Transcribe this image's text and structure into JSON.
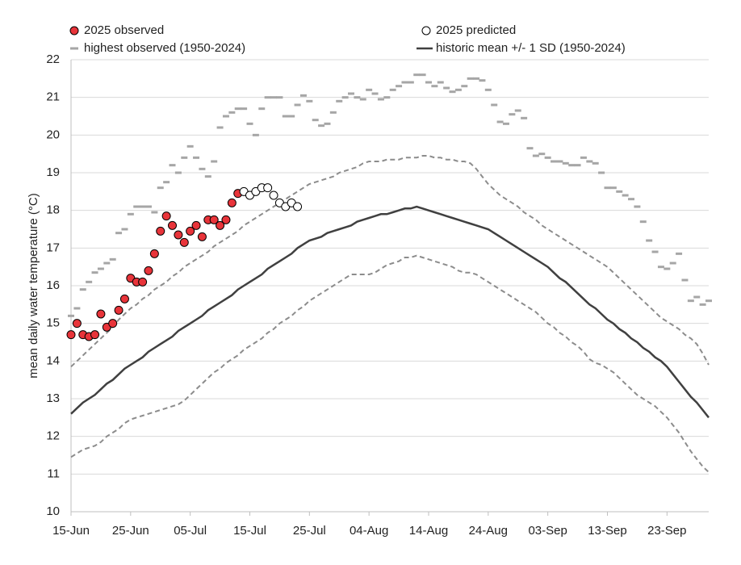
{
  "chart_data": {
    "type": "line",
    "ylabel": "mean daily water temperature (°C)",
    "ylim": [
      10,
      22
    ],
    "yticks": [
      10,
      11,
      12,
      13,
      14,
      15,
      16,
      17,
      18,
      19,
      20,
      21,
      22
    ],
    "grid": true,
    "categories": [
      "15-Jun",
      null,
      null,
      null,
      null,
      null,
      null,
      null,
      null,
      null,
      "25-Jun",
      null,
      null,
      null,
      null,
      null,
      null,
      null,
      null,
      null,
      "05-Jul",
      null,
      null,
      null,
      null,
      null,
      null,
      null,
      null,
      null,
      "15-Jul",
      null,
      null,
      null,
      null,
      null,
      null,
      null,
      null,
      null,
      "25-Jul",
      null,
      null,
      null,
      null,
      null,
      null,
      null,
      null,
      null,
      "04-Aug",
      null,
      null,
      null,
      null,
      null,
      null,
      null,
      null,
      null,
      "14-Aug",
      null,
      null,
      null,
      null,
      null,
      null,
      null,
      null,
      null,
      "24-Aug",
      null,
      null,
      null,
      null,
      null,
      null,
      null,
      null,
      null,
      "03-Sep",
      null,
      null,
      null,
      null,
      null,
      null,
      null,
      null,
      null,
      "13-Sep",
      null,
      null,
      null,
      null,
      null,
      null,
      null,
      null,
      null,
      "23-Sep",
      null,
      null,
      null,
      null,
      null,
      null,
      null
    ],
    "series": [
      {
        "name": "highest observed (1950-2024)",
        "color": "#a6a6a6",
        "style": "dash",
        "values": [
          15.2,
          15.4,
          15.9,
          16.1,
          16.35,
          16.45,
          16.6,
          16.7,
          17.4,
          17.5,
          17.9,
          18.1,
          18.1,
          18.1,
          17.95,
          18.6,
          18.75,
          19.2,
          19.0,
          19.4,
          19.7,
          19.4,
          19.1,
          18.9,
          19.3,
          20.2,
          20.5,
          20.6,
          20.7,
          20.7,
          20.3,
          20.0,
          20.7,
          21.0,
          21.0,
          21.0,
          20.5,
          20.5,
          20.8,
          21.05,
          20.9,
          20.4,
          20.25,
          20.3,
          20.6,
          20.9,
          21.0,
          21.1,
          21.0,
          20.95,
          21.2,
          21.1,
          20.95,
          21.0,
          21.2,
          21.3,
          21.4,
          21.4,
          21.6,
          21.6,
          21.4,
          21.3,
          21.4,
          21.25,
          21.15,
          21.2,
          21.3,
          21.5,
          21.5,
          21.45,
          21.2,
          20.8,
          20.35,
          20.3,
          20.55,
          20.65,
          20.45,
          19.65,
          19.45,
          19.5,
          19.4,
          19.3,
          19.3,
          19.25,
          19.2,
          19.2,
          19.4,
          19.3,
          19.25,
          19.0,
          18.6,
          18.6,
          18.5,
          18.4,
          18.3,
          18.1,
          17.7,
          17.2,
          16.9,
          16.5,
          16.45,
          16.6,
          16.85,
          16.15,
          15.6,
          15.7,
          15.5,
          15.6
        ]
      },
      {
        "color": "#8c8c8c",
        "style": "dashed-line",
        "values": [
          13.85,
          14.0,
          14.15,
          14.3,
          14.45,
          14.6,
          14.75,
          14.9,
          15.1,
          15.25,
          15.4,
          15.5,
          15.65,
          15.75,
          15.9,
          16.0,
          16.1,
          16.25,
          16.35,
          16.5,
          16.6,
          16.7,
          16.8,
          16.9,
          17.05,
          17.15,
          17.25,
          17.35,
          17.45,
          17.6,
          17.7,
          17.8,
          17.9,
          18.0,
          18.1,
          18.2,
          18.3,
          18.4,
          18.5,
          18.6,
          18.7,
          18.75,
          18.8,
          18.85,
          18.9,
          19.0,
          19.05,
          19.1,
          19.15,
          19.25,
          19.3,
          19.3,
          19.3,
          19.35,
          19.35,
          19.35,
          19.4,
          19.4,
          19.4,
          19.45,
          19.45,
          19.4,
          19.4,
          19.35,
          19.35,
          19.3,
          19.3,
          19.25,
          19.1,
          18.9,
          18.7,
          18.55,
          18.4,
          18.3,
          18.2,
          18.1,
          17.95,
          17.85,
          17.75,
          17.6,
          17.5,
          17.4,
          17.3,
          17.2,
          17.1,
          17.0,
          16.9,
          16.8,
          16.7,
          16.6,
          16.5,
          16.35,
          16.2,
          16.05,
          15.9,
          15.75,
          15.6,
          15.45,
          15.3,
          15.15,
          15.05,
          14.95,
          14.85,
          14.7,
          14.6,
          14.45,
          14.2,
          13.9
        ]
      },
      {
        "color": "#8c8c8c",
        "style": "dashed-line",
        "values": [
          11.45,
          11.55,
          11.65,
          11.7,
          11.75,
          11.85,
          12.0,
          12.1,
          12.2,
          12.35,
          12.45,
          12.5,
          12.55,
          12.6,
          12.65,
          12.7,
          12.75,
          12.8,
          12.85,
          12.95,
          13.1,
          13.25,
          13.4,
          13.55,
          13.7,
          13.8,
          13.95,
          14.05,
          14.15,
          14.3,
          14.4,
          14.5,
          14.6,
          14.75,
          14.85,
          15.0,
          15.1,
          15.2,
          15.35,
          15.45,
          15.6,
          15.7,
          15.8,
          15.9,
          16.0,
          16.1,
          16.2,
          16.3,
          16.3,
          16.3,
          16.3,
          16.35,
          16.45,
          16.55,
          16.6,
          16.65,
          16.75,
          16.75,
          16.8,
          16.75,
          16.7,
          16.65,
          16.6,
          16.55,
          16.5,
          16.4,
          16.35,
          16.35,
          16.3,
          16.2,
          16.1,
          16.0,
          15.9,
          15.8,
          15.7,
          15.6,
          15.5,
          15.4,
          15.3,
          15.15,
          15.0,
          14.9,
          14.75,
          14.65,
          14.5,
          14.4,
          14.25,
          14.05,
          13.95,
          13.9,
          13.8,
          13.7,
          13.55,
          13.4,
          13.25,
          13.1,
          13.0,
          12.9,
          12.8,
          12.65,
          12.5,
          12.3,
          12.1,
          11.85,
          11.6,
          11.4,
          11.2,
          11.05
        ]
      },
      {
        "name": "historic mean +/- 1 SD (1950-2024)",
        "color": "#404040",
        "style": "line",
        "values": [
          12.6,
          12.75,
          12.9,
          13.0,
          13.1,
          13.25,
          13.4,
          13.5,
          13.65,
          13.8,
          13.9,
          14.0,
          14.1,
          14.25,
          14.35,
          14.45,
          14.55,
          14.65,
          14.8,
          14.9,
          15.0,
          15.1,
          15.2,
          15.35,
          15.45,
          15.55,
          15.65,
          15.75,
          15.9,
          16.0,
          16.1,
          16.2,
          16.3,
          16.45,
          16.55,
          16.65,
          16.75,
          16.85,
          17.0,
          17.1,
          17.2,
          17.25,
          17.3,
          17.4,
          17.45,
          17.5,
          17.55,
          17.6,
          17.7,
          17.75,
          17.8,
          17.85,
          17.9,
          17.9,
          17.95,
          18.0,
          18.05,
          18.05,
          18.1,
          18.05,
          18.0,
          17.95,
          17.9,
          17.85,
          17.8,
          17.75,
          17.7,
          17.65,
          17.6,
          17.55,
          17.5,
          17.4,
          17.3,
          17.2,
          17.1,
          17.0,
          16.9,
          16.8,
          16.7,
          16.6,
          16.5,
          16.35,
          16.2,
          16.1,
          15.95,
          15.8,
          15.65,
          15.5,
          15.4,
          15.25,
          15.1,
          15.0,
          14.85,
          14.75,
          14.6,
          14.5,
          14.35,
          14.25,
          14.1,
          14.0,
          13.85,
          13.65,
          13.45,
          13.25,
          13.05,
          12.9,
          12.7,
          12.5
        ]
      },
      {
        "name": "2025 observed",
        "color": "#e8343a",
        "style": "marker",
        "values": [
          14.7,
          15.0,
          14.7,
          14.65,
          14.7,
          15.25,
          14.9,
          15.0,
          15.35,
          15.65,
          16.2,
          16.1,
          16.1,
          16.4,
          16.85,
          17.45,
          17.85,
          17.6,
          17.35,
          17.15,
          17.45,
          17.6,
          17.3,
          17.75,
          17.75,
          17.6,
          17.75,
          18.2,
          18.45,
          null,
          null,
          null,
          null,
          null,
          null,
          null,
          null,
          null,
          null,
          null,
          null,
          null,
          null,
          null,
          null,
          null,
          null,
          null,
          null,
          null,
          null,
          null,
          null,
          null,
          null,
          null,
          null,
          null,
          null,
          null,
          null,
          null,
          null,
          null,
          null,
          null,
          null,
          null,
          null,
          null,
          null,
          null,
          null,
          null,
          null,
          null,
          null,
          null,
          null,
          null,
          null,
          null,
          null,
          null,
          null,
          null,
          null,
          null,
          null,
          null,
          null,
          null,
          null,
          null,
          null,
          null,
          null,
          null,
          null,
          null,
          null,
          null,
          null,
          null,
          null,
          null,
          null,
          null
        ]
      },
      {
        "name": "2025 predicted",
        "color": "#ffffff",
        "style": "marker",
        "values": [
          null,
          null,
          null,
          null,
          null,
          null,
          null,
          null,
          null,
          null,
          null,
          null,
          null,
          null,
          null,
          null,
          null,
          null,
          null,
          null,
          null,
          null,
          null,
          null,
          null,
          null,
          null,
          null,
          null,
          18.5,
          18.4,
          18.5,
          18.6,
          18.6,
          18.4,
          18.2,
          18.1,
          18.2,
          18.1,
          null,
          null,
          null,
          null,
          null,
          null,
          null,
          null,
          null,
          null,
          null,
          null,
          null,
          null,
          null,
          null,
          null,
          null,
          null,
          null,
          null,
          null,
          null,
          null,
          null,
          null,
          null,
          null,
          null,
          null,
          null,
          null,
          null,
          null,
          null,
          null,
          null,
          null,
          null,
          null,
          null,
          null,
          null,
          null,
          null,
          null,
          null,
          null,
          null,
          null,
          null,
          null,
          null,
          null,
          null,
          null,
          null,
          null,
          null,
          null,
          null,
          null,
          null,
          null,
          null,
          null,
          null,
          null,
          null
        ]
      }
    ]
  }
}
